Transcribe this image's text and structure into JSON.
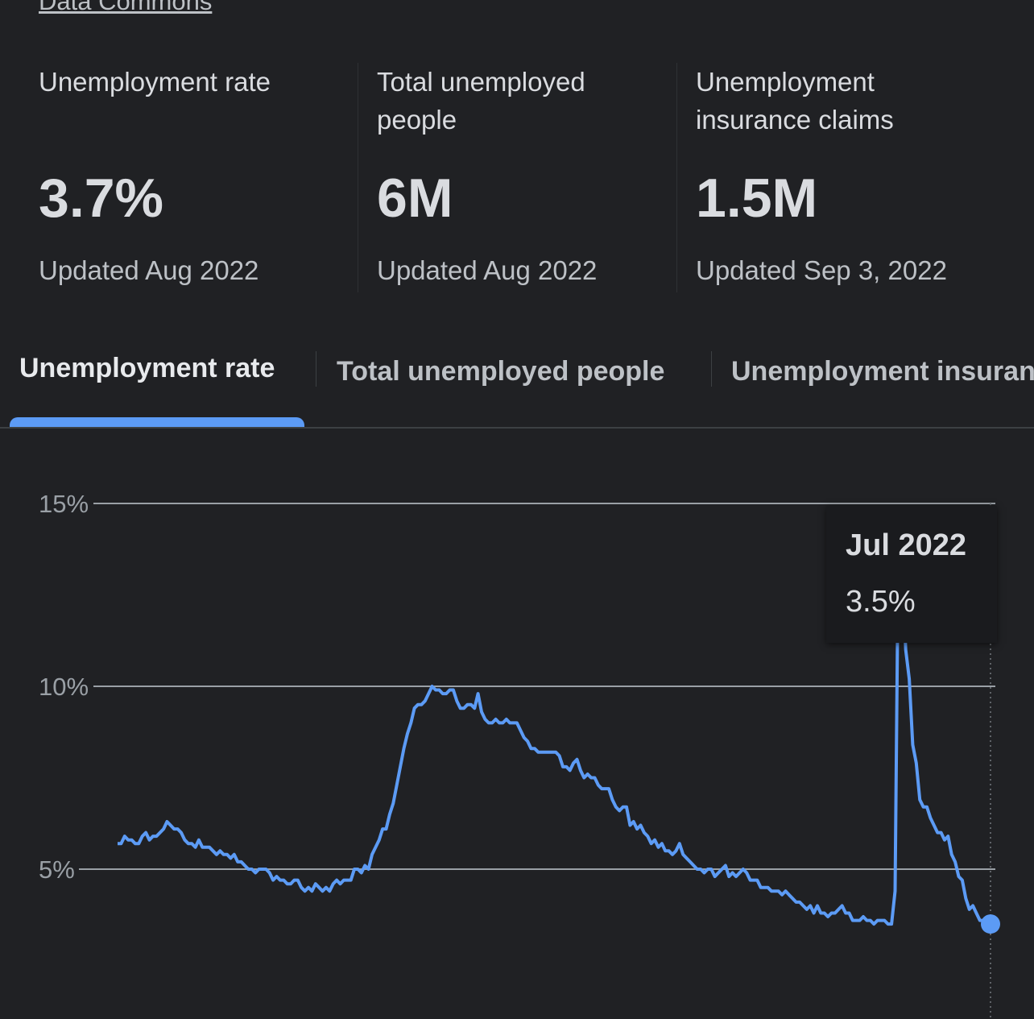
{
  "source": {
    "label": "Data Commons"
  },
  "stats": [
    {
      "label": "Unemployment rate",
      "value": "3.7%",
      "updated": "Updated Aug 2022"
    },
    {
      "label": "Total unemployed people",
      "value": "6M",
      "updated": "Updated Aug 2022"
    },
    {
      "label": "Unemployment insurance claims",
      "value": "1.5M",
      "updated": "Updated Sep 3, 2022"
    }
  ],
  "tabs": [
    {
      "label": "Unemployment rate",
      "selected": true
    },
    {
      "label": "Total unemployed people",
      "selected": false
    },
    {
      "label": "Unemployment insurance claims",
      "selected": false
    }
  ],
  "colors": {
    "background": "#202124",
    "line": "#5c9bf5",
    "grid": "#9aa0a6",
    "text": "#e8eaed"
  },
  "tooltip": {
    "date": "Jul 2022",
    "value": "3.5%"
  },
  "chart_data": {
    "type": "line",
    "title": "",
    "xlabel": "",
    "ylabel": "",
    "ylim": [
      0,
      15
    ],
    "yticks": [
      {
        "value": 5,
        "label": "5%"
      },
      {
        "value": 10,
        "label": "10%"
      },
      {
        "value": 15,
        "label": "15%"
      }
    ],
    "grid": true,
    "x_start": "2002-03",
    "x_end": "2022-07",
    "x_step": "1 month",
    "series": [
      {
        "values": [
          5.7,
          5.7,
          5.9,
          5.8,
          5.8,
          5.7,
          5.7,
          5.9,
          6.0,
          5.8,
          5.9,
          5.9,
          6.0,
          6.1,
          6.3,
          6.2,
          6.1,
          6.1,
          6.0,
          5.8,
          5.7,
          5.7,
          5.6,
          5.8,
          5.6,
          5.6,
          5.6,
          5.5,
          5.4,
          5.5,
          5.4,
          5.4,
          5.3,
          5.4,
          5.2,
          5.2,
          5.1,
          5.0,
          5.0,
          4.9,
          5.0,
          5.0,
          5.0,
          4.9,
          4.7,
          4.8,
          4.7,
          4.7,
          4.6,
          4.6,
          4.7,
          4.7,
          4.5,
          4.4,
          4.5,
          4.4,
          4.6,
          4.5,
          4.4,
          4.5,
          4.4,
          4.6,
          4.7,
          4.6,
          4.7,
          4.7,
          4.7,
          5.0,
          5.0,
          4.9,
          5.1,
          5.0,
          5.4,
          5.6,
          5.8,
          6.1,
          6.1,
          6.5,
          6.8,
          7.3,
          7.8,
          8.3,
          8.7,
          9.0,
          9.4,
          9.5,
          9.5,
          9.6,
          9.8,
          10.0,
          9.9,
          9.9,
          9.8,
          9.8,
          9.9,
          9.9,
          9.6,
          9.4,
          9.4,
          9.5,
          9.5,
          9.4,
          9.8,
          9.3,
          9.1,
          9.0,
          9.0,
          9.1,
          9.0,
          9.0,
          9.1,
          9.0,
          9.0,
          9.0,
          8.8,
          8.6,
          8.5,
          8.3,
          8.3,
          8.2,
          8.2,
          8.2,
          8.2,
          8.2,
          8.2,
          8.1,
          7.8,
          7.8,
          7.7,
          7.9,
          8.0,
          7.7,
          7.5,
          7.6,
          7.5,
          7.5,
          7.3,
          7.2,
          7.2,
          7.2,
          6.9,
          6.7,
          6.6,
          6.7,
          6.7,
          6.2,
          6.3,
          6.1,
          6.2,
          6.0,
          5.9,
          5.7,
          5.8,
          5.6,
          5.7,
          5.5,
          5.5,
          5.4,
          5.5,
          5.7,
          5.4,
          5.3,
          5.2,
          5.1,
          5.0,
          5.0,
          4.9,
          5.0,
          5.0,
          4.8,
          4.9,
          5.0,
          5.1,
          4.8,
          4.9,
          4.8,
          4.9,
          5.0,
          4.9,
          4.7,
          4.7,
          4.7,
          4.5,
          4.5,
          4.5,
          4.4,
          4.4,
          4.4,
          4.3,
          4.4,
          4.3,
          4.2,
          4.1,
          4.1,
          4.0,
          3.9,
          4.0,
          3.8,
          4.0,
          3.8,
          3.8,
          3.7,
          3.8,
          3.8,
          3.9,
          4.0,
          3.8,
          3.8,
          3.6,
          3.6,
          3.6,
          3.7,
          3.6,
          3.6,
          3.5,
          3.6,
          3.6,
          3.6,
          3.5,
          3.5,
          4.4,
          14.7,
          13.2,
          11.0,
          10.2,
          8.4,
          7.9,
          6.9,
          6.7,
          6.7,
          6.4,
          6.2,
          6.0,
          6.0,
          5.8,
          5.9,
          5.4,
          5.2,
          4.8,
          4.7,
          4.2,
          3.9,
          4.0,
          3.8,
          3.6,
          3.6,
          3.6,
          3.5
        ]
      }
    ]
  }
}
